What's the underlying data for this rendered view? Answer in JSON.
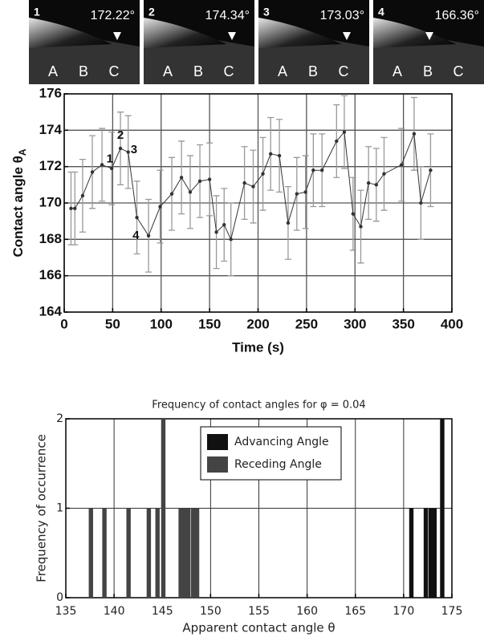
{
  "panels": [
    {
      "number": "1",
      "angle": "172.22°",
      "letters": [
        "A",
        "B",
        "C"
      ]
    },
    {
      "number": "2",
      "angle": "174.34°",
      "letters": [
        "A",
        "B",
        "C"
      ]
    },
    {
      "number": "3",
      "angle": "173.03°",
      "letters": [
        "A",
        "B",
        "C"
      ]
    },
    {
      "number": "4",
      "angle": "166.36°",
      "letters": [
        "A",
        "B",
        "C"
      ]
    }
  ],
  "chart_data": [
    {
      "type": "line",
      "xlabel": "Time (s)",
      "ylabel": "Contact angle θ",
      "ylabel_sub": "A",
      "x": [
        7,
        11,
        19,
        29,
        39,
        49,
        58,
        66,
        75,
        87,
        99,
        111,
        121,
        130,
        140,
        150,
        157,
        165,
        172,
        186,
        195,
        205,
        213,
        222,
        231,
        240,
        249,
        257,
        266,
        281,
        289,
        298,
        306,
        314,
        322,
        330,
        348,
        361,
        368,
        378
      ],
      "series": [
        {
          "color": "#333333",
          "values": [
            169.7,
            169.7,
            170.4,
            171.7,
            172.1,
            171.9,
            173.0,
            172.8,
            169.2,
            168.2,
            169.8,
            170.5,
            171.4,
            170.6,
            171.2,
            171.3,
            168.4,
            168.8,
            168.0,
            171.1,
            170.9,
            171.6,
            172.7,
            172.6,
            168.9,
            170.5,
            170.6,
            171.8,
            171.8,
            173.4,
            173.9,
            169.4,
            168.7,
            171.1,
            171.0,
            171.6,
            172.1,
            173.8,
            170.0,
            171.8
          ],
          "errors": [
            2,
            2,
            2,
            2,
            2,
            2,
            2,
            2,
            2,
            2,
            2,
            2,
            2,
            2,
            2,
            2,
            2,
            2,
            2,
            2,
            2,
            2,
            2,
            2,
            2,
            2,
            2,
            2,
            2,
            2,
            2,
            2,
            2,
            2,
            2,
            2,
            2,
            2,
            2,
            2
          ],
          "error_color": "#999999"
        }
      ],
      "annotations": [
        {
          "text": "1",
          "x": 47,
          "y": 172.4
        },
        {
          "text": "2",
          "x": 58,
          "y": 173.7
        },
        {
          "text": "3",
          "x": 72,
          "y": 172.9
        },
        {
          "text": "4",
          "x": 74,
          "y": 168.2
        }
      ],
      "xlim": [
        0,
        400
      ],
      "xticks": [
        0,
        50,
        100,
        150,
        200,
        250,
        300,
        350,
        400
      ],
      "ylim": [
        164,
        176
      ],
      "yticks": [
        164,
        166,
        168,
        170,
        172,
        174,
        176
      ],
      "grid": true
    },
    {
      "type": "bar",
      "title": "Frequency of contact angles for φ = 0.04",
      "xlabel": "Apparent contact angle θ",
      "ylabel": "Frequency of occurrence",
      "series": [
        {
          "name": "Advancing Angle",
          "color": "#111111",
          "x": [
            170.8,
            172.3,
            172.8,
            173.2,
            174.0
          ],
          "values": [
            1,
            1,
            1,
            1,
            2
          ]
        },
        {
          "name": "Receding Angle",
          "color": "#444444",
          "x": [
            137.6,
            139.0,
            141.5,
            143.6,
            144.5,
            145.1,
            146.9,
            147.3,
            147.7,
            148.2,
            148.6
          ],
          "values": [
            1,
            1,
            1,
            1,
            1,
            2,
            1,
            1,
            1,
            1,
            1
          ]
        }
      ],
      "xlim": [
        135,
        175
      ],
      "xticks": [
        135,
        140,
        145,
        150,
        155,
        160,
        165,
        170,
        175
      ],
      "ylim": [
        0,
        2
      ],
      "yticks": [
        0,
        1,
        2
      ],
      "grid": true
    }
  ]
}
